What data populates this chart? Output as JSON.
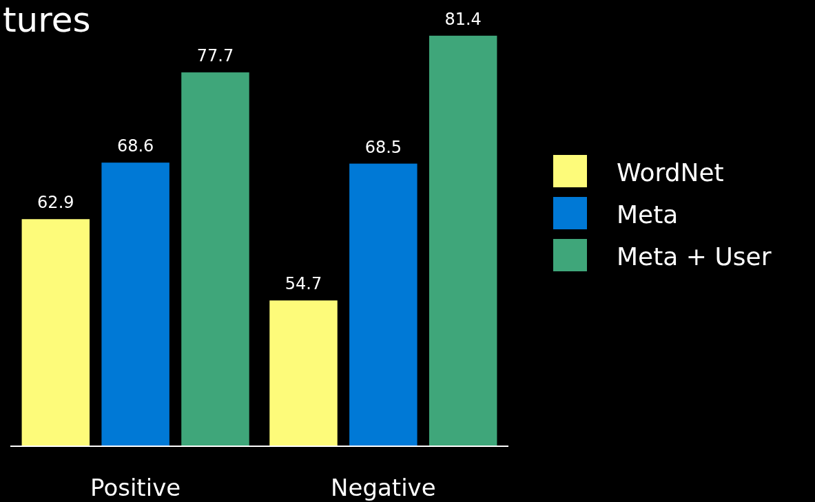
{
  "chart_data": {
    "type": "bar",
    "title": "tures",
    "categories": [
      "Positive",
      "Negative"
    ],
    "series": [
      {
        "name": "WordNet",
        "color": "#fdfb7a",
        "values": [
          62.9,
          54.7
        ]
      },
      {
        "name": "Meta",
        "color": "#0079d6",
        "values": [
          68.6,
          68.5
        ]
      },
      {
        "name": "Meta + User",
        "color": "#3fa67a",
        "values": [
          77.7,
          81.4
        ]
      }
    ],
    "ylim": [
      40,
      85
    ],
    "data_labels": true,
    "legend": "right"
  }
}
